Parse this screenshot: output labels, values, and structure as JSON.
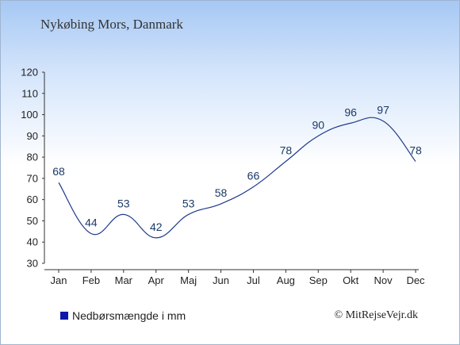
{
  "title": "Nykøbing Mors, Danmark",
  "legend": {
    "label": "Nedbørsmængde i mm",
    "color": "#0a1aa8"
  },
  "credit": "© MitRejseVejr.dk",
  "colors": {
    "line": "#1f3a8c",
    "axis": "#333333"
  },
  "chart_data": {
    "type": "line",
    "categories": [
      "Jan",
      "Feb",
      "Mar",
      "Apr",
      "Maj",
      "Jun",
      "Jul",
      "Aug",
      "Sep",
      "Okt",
      "Nov",
      "Dec"
    ],
    "series": [
      {
        "name": "Nedbørsmængde i mm",
        "values": [
          68,
          44,
          53,
          42,
          53,
          58,
          66,
          78,
          90,
          96,
          97,
          78
        ]
      }
    ],
    "yticks": [
      30,
      40,
      50,
      60,
      70,
      80,
      90,
      100,
      110,
      120
    ],
    "ylim": [
      30,
      120
    ],
    "xlabel": "",
    "ylabel": "",
    "grid": false,
    "legend_position": "bottom-left"
  }
}
